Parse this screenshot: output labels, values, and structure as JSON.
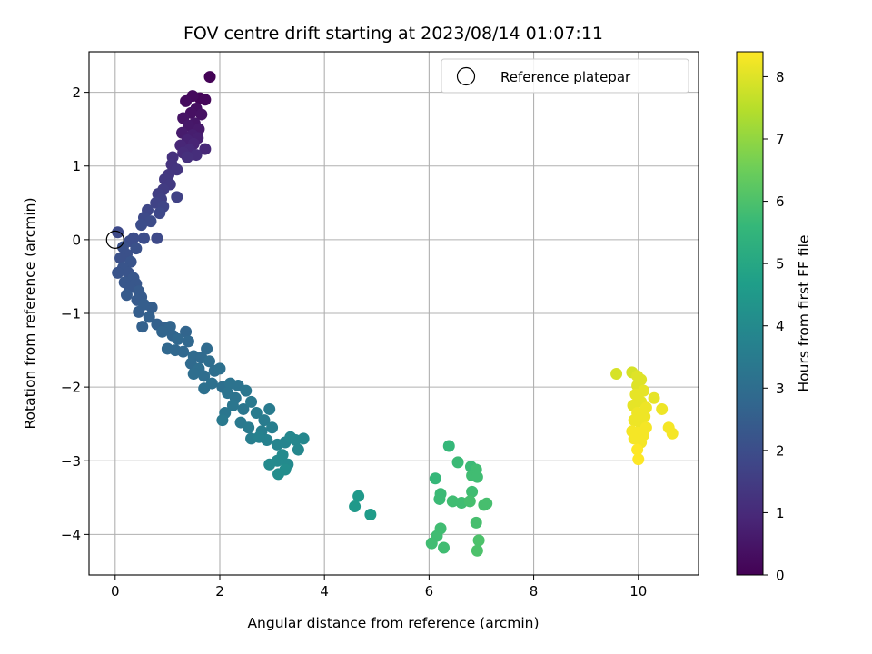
{
  "chart_data": {
    "type": "scatter",
    "title": "FOV centre drift starting at 2023/08/14 01:07:11",
    "xlabel": "Angular distance from reference (arcmin)",
    "ylabel": "Rotation from reference (arcmin)",
    "xlim": [
      -0.5,
      11.15
    ],
    "ylim": [
      -4.55,
      2.55
    ],
    "xticks": [
      0,
      2,
      4,
      6,
      8,
      10
    ],
    "yticks": [
      -4,
      -3,
      -2,
      -1,
      0,
      1,
      2
    ],
    "grid": true,
    "colormap": "viridis",
    "colorbar": {
      "label": "Hours from first FF file",
      "range": [
        0,
        8.4
      ],
      "ticks": [
        0,
        1,
        2,
        3,
        4,
        5,
        6,
        7,
        8
      ]
    },
    "legend": {
      "position": "top-right",
      "entries": [
        {
          "label": "Reference platepar",
          "marker": "open-circle"
        }
      ]
    },
    "reference_point": [
      0,
      0
    ],
    "points": [
      {
        "x": 1.81,
        "y": 2.21,
        "t": 0.05
      },
      {
        "x": 1.62,
        "y": 1.92,
        "t": 0.1
      },
      {
        "x": 1.72,
        "y": 1.9,
        "t": 0.15
      },
      {
        "x": 1.48,
        "y": 1.95,
        "t": 0.2
      },
      {
        "x": 1.35,
        "y": 1.88,
        "t": 0.25
      },
      {
        "x": 1.55,
        "y": 1.78,
        "t": 0.3
      },
      {
        "x": 1.45,
        "y": 1.72,
        "t": 0.35
      },
      {
        "x": 1.65,
        "y": 1.7,
        "t": 0.4
      },
      {
        "x": 1.3,
        "y": 1.65,
        "t": 0.45
      },
      {
        "x": 1.52,
        "y": 1.58,
        "t": 0.5
      },
      {
        "x": 1.4,
        "y": 1.55,
        "t": 0.55
      },
      {
        "x": 1.6,
        "y": 1.5,
        "t": 0.6
      },
      {
        "x": 1.28,
        "y": 1.45,
        "t": 0.65
      },
      {
        "x": 1.48,
        "y": 1.42,
        "t": 0.7
      },
      {
        "x": 1.58,
        "y": 1.38,
        "t": 0.75
      },
      {
        "x": 1.38,
        "y": 1.35,
        "t": 0.8
      },
      {
        "x": 1.5,
        "y": 1.3,
        "t": 0.85
      },
      {
        "x": 1.25,
        "y": 1.28,
        "t": 0.9
      },
      {
        "x": 1.72,
        "y": 1.23,
        "t": 0.95
      },
      {
        "x": 1.42,
        "y": 1.22,
        "t": 1.0
      },
      {
        "x": 1.3,
        "y": 1.18,
        "t": 1.05
      },
      {
        "x": 1.55,
        "y": 1.15,
        "t": 1.1
      },
      {
        "x": 1.38,
        "y": 1.12,
        "t": 1.15
      },
      {
        "x": 1.1,
        "y": 1.12,
        "t": 1.2
      },
      {
        "x": 1.08,
        "y": 1.02,
        "t": 1.25
      },
      {
        "x": 1.18,
        "y": 0.95,
        "t": 1.3
      },
      {
        "x": 1.02,
        "y": 0.88,
        "t": 1.35
      },
      {
        "x": 0.95,
        "y": 0.82,
        "t": 1.4
      },
      {
        "x": 1.05,
        "y": 0.75,
        "t": 1.45
      },
      {
        "x": 0.92,
        "y": 0.68,
        "t": 1.5
      },
      {
        "x": 0.82,
        "y": 0.62,
        "t": 1.55
      },
      {
        "x": 0.88,
        "y": 0.55,
        "t": 1.6
      },
      {
        "x": 1.18,
        "y": 0.58,
        "t": 1.65
      },
      {
        "x": 0.78,
        "y": 0.5,
        "t": 1.7
      },
      {
        "x": 0.92,
        "y": 0.45,
        "t": 1.75
      },
      {
        "x": 0.62,
        "y": 0.4,
        "t": 1.8
      },
      {
        "x": 0.85,
        "y": 0.36,
        "t": 1.85
      },
      {
        "x": 0.55,
        "y": 0.3,
        "t": 1.9
      },
      {
        "x": 0.68,
        "y": 0.25,
        "t": 1.95
      },
      {
        "x": 0.5,
        "y": 0.2,
        "t": 2.0
      },
      {
        "x": 0.05,
        "y": 0.1,
        "t": 1.9
      },
      {
        "x": 0.35,
        "y": 0.02,
        "t": 2.0
      },
      {
        "x": 0.55,
        "y": 0.02,
        "t": 2.0
      },
      {
        "x": 0.8,
        "y": 0.02,
        "t": 1.9
      },
      {
        "x": 0.28,
        "y": -0.02,
        "t": 2.0
      },
      {
        "x": 0.15,
        "y": -0.1,
        "t": 2.1
      },
      {
        "x": 0.4,
        "y": -0.12,
        "t": 2.1
      },
      {
        "x": 0.22,
        "y": -0.2,
        "t": 2.1
      },
      {
        "x": 0.1,
        "y": -0.25,
        "t": 2.1
      },
      {
        "x": 0.3,
        "y": -0.3,
        "t": 2.2
      },
      {
        "x": 0.15,
        "y": -0.38,
        "t": 2.2
      },
      {
        "x": 0.05,
        "y": -0.45,
        "t": 2.2
      },
      {
        "x": 0.25,
        "y": -0.45,
        "t": 2.2
      },
      {
        "x": 0.35,
        "y": -0.52,
        "t": 2.3
      },
      {
        "x": 0.18,
        "y": -0.58,
        "t": 2.3
      },
      {
        "x": 0.4,
        "y": -0.6,
        "t": 2.3
      },
      {
        "x": 0.28,
        "y": -0.65,
        "t": 2.3
      },
      {
        "x": 0.45,
        "y": -0.7,
        "t": 2.4
      },
      {
        "x": 0.22,
        "y": -0.75,
        "t": 2.4
      },
      {
        "x": 0.5,
        "y": -0.78,
        "t": 2.4
      },
      {
        "x": 0.42,
        "y": -0.82,
        "t": 2.4
      },
      {
        "x": 0.55,
        "y": -0.88,
        "t": 2.5
      },
      {
        "x": 0.7,
        "y": -0.92,
        "t": 2.5
      },
      {
        "x": 0.45,
        "y": -0.98,
        "t": 2.5
      },
      {
        "x": 0.65,
        "y": -1.05,
        "t": 2.6
      },
      {
        "x": 0.52,
        "y": -1.18,
        "t": 2.6
      },
      {
        "x": 0.8,
        "y": -1.15,
        "t": 2.6
      },
      {
        "x": 0.95,
        "y": -1.2,
        "t": 2.6
      },
      {
        "x": 1.05,
        "y": -1.18,
        "t": 2.7
      },
      {
        "x": 0.9,
        "y": -1.25,
        "t": 2.7
      },
      {
        "x": 1.1,
        "y": -1.3,
        "t": 2.7
      },
      {
        "x": 1.35,
        "y": -1.25,
        "t": 2.7
      },
      {
        "x": 1.2,
        "y": -1.35,
        "t": 2.8
      },
      {
        "x": 1.4,
        "y": -1.38,
        "t": 2.8
      },
      {
        "x": 1.0,
        "y": -1.48,
        "t": 2.8
      },
      {
        "x": 1.15,
        "y": -1.5,
        "t": 2.8
      },
      {
        "x": 1.3,
        "y": -1.52,
        "t": 2.8
      },
      {
        "x": 1.5,
        "y": -1.58,
        "t": 2.9
      },
      {
        "x": 1.75,
        "y": -1.48,
        "t": 2.9
      },
      {
        "x": 1.65,
        "y": -1.6,
        "t": 2.9
      },
      {
        "x": 1.45,
        "y": -1.68,
        "t": 2.9
      },
      {
        "x": 1.8,
        "y": -1.65,
        "t": 3.0
      },
      {
        "x": 1.6,
        "y": -1.75,
        "t": 3.0
      },
      {
        "x": 1.5,
        "y": -1.82,
        "t": 3.0
      },
      {
        "x": 1.7,
        "y": -1.85,
        "t": 3.0
      },
      {
        "x": 1.9,
        "y": -1.78,
        "t": 3.0
      },
      {
        "x": 2.0,
        "y": -1.75,
        "t": 3.1
      },
      {
        "x": 1.85,
        "y": -1.95,
        "t": 3.1
      },
      {
        "x": 1.7,
        "y": -2.02,
        "t": 3.1
      },
      {
        "x": 2.05,
        "y": -2.0,
        "t": 3.1
      },
      {
        "x": 2.2,
        "y": -1.95,
        "t": 3.2
      },
      {
        "x": 2.35,
        "y": -1.98,
        "t": 3.2
      },
      {
        "x": 2.15,
        "y": -2.08,
        "t": 3.2
      },
      {
        "x": 2.3,
        "y": -2.15,
        "t": 3.2
      },
      {
        "x": 2.5,
        "y": -2.05,
        "t": 3.3
      },
      {
        "x": 2.25,
        "y": -2.25,
        "t": 3.3
      },
      {
        "x": 2.45,
        "y": -2.3,
        "t": 3.3
      },
      {
        "x": 2.1,
        "y": -2.35,
        "t": 3.3
      },
      {
        "x": 2.6,
        "y": -2.2,
        "t": 3.4
      },
      {
        "x": 2.4,
        "y": -2.48,
        "t": 3.4
      },
      {
        "x": 2.05,
        "y": -2.45,
        "t": 3.4
      },
      {
        "x": 2.7,
        "y": -2.35,
        "t": 3.5
      },
      {
        "x": 2.55,
        "y": -2.55,
        "t": 3.5
      },
      {
        "x": 2.85,
        "y": -2.45,
        "t": 3.5
      },
      {
        "x": 2.95,
        "y": -2.3,
        "t": 3.5
      },
      {
        "x": 2.8,
        "y": -2.6,
        "t": 3.6
      },
      {
        "x": 2.6,
        "y": -2.7,
        "t": 3.6
      },
      {
        "x": 3.0,
        "y": -2.55,
        "t": 3.6
      },
      {
        "x": 2.9,
        "y": -2.72,
        "t": 3.7
      },
      {
        "x": 2.75,
        "y": -2.68,
        "t": 3.7
      },
      {
        "x": 3.1,
        "y": -2.78,
        "t": 3.8
      },
      {
        "x": 3.25,
        "y": -2.75,
        "t": 3.8
      },
      {
        "x": 3.35,
        "y": -2.68,
        "t": 3.9
      },
      {
        "x": 3.45,
        "y": -2.72,
        "t": 3.9
      },
      {
        "x": 3.6,
        "y": -2.7,
        "t": 3.9
      },
      {
        "x": 3.5,
        "y": -2.85,
        "t": 3.9
      },
      {
        "x": 3.2,
        "y": -2.92,
        "t": 4.0
      },
      {
        "x": 3.1,
        "y": -3.0,
        "t": 4.0
      },
      {
        "x": 3.3,
        "y": -3.05,
        "t": 4.0
      },
      {
        "x": 2.95,
        "y": -3.05,
        "t": 4.0
      },
      {
        "x": 3.25,
        "y": -3.12,
        "t": 4.1
      },
      {
        "x": 3.12,
        "y": -3.18,
        "t": 4.1
      },
      {
        "x": 4.65,
        "y": -3.48,
        "t": 4.5
      },
      {
        "x": 4.58,
        "y": -3.62,
        "t": 4.5
      },
      {
        "x": 4.88,
        "y": -3.73,
        "t": 4.6
      },
      {
        "x": 6.38,
        "y": -2.8,
        "t": 5.6
      },
      {
        "x": 6.55,
        "y": -3.02,
        "t": 5.7
      },
      {
        "x": 6.8,
        "y": -3.08,
        "t": 5.7
      },
      {
        "x": 6.9,
        "y": -3.12,
        "t": 5.8
      },
      {
        "x": 6.82,
        "y": -3.2,
        "t": 5.8
      },
      {
        "x": 6.92,
        "y": -3.22,
        "t": 5.8
      },
      {
        "x": 6.12,
        "y": -3.24,
        "t": 5.6
      },
      {
        "x": 6.22,
        "y": -3.45,
        "t": 5.7
      },
      {
        "x": 6.2,
        "y": -3.52,
        "t": 5.7
      },
      {
        "x": 6.82,
        "y": -3.42,
        "t": 5.8
      },
      {
        "x": 6.45,
        "y": -3.55,
        "t": 5.8
      },
      {
        "x": 6.62,
        "y": -3.57,
        "t": 5.8
      },
      {
        "x": 6.78,
        "y": -3.55,
        "t": 5.9
      },
      {
        "x": 7.05,
        "y": -3.6,
        "t": 5.9
      },
      {
        "x": 7.1,
        "y": -3.58,
        "t": 5.9
      },
      {
        "x": 6.9,
        "y": -3.84,
        "t": 5.9
      },
      {
        "x": 6.22,
        "y": -3.92,
        "t": 5.8
      },
      {
        "x": 6.15,
        "y": -4.02,
        "t": 5.8
      },
      {
        "x": 6.05,
        "y": -4.12,
        "t": 5.8
      },
      {
        "x": 6.28,
        "y": -4.18,
        "t": 5.8
      },
      {
        "x": 6.95,
        "y": -4.08,
        "t": 6.0
      },
      {
        "x": 6.92,
        "y": -4.22,
        "t": 6.0
      },
      {
        "x": 9.58,
        "y": -1.82,
        "t": 7.9
      },
      {
        "x": 9.88,
        "y": -1.8,
        "t": 7.9
      },
      {
        "x": 9.98,
        "y": -1.85,
        "t": 8.0
      },
      {
        "x": 10.05,
        "y": -1.9,
        "t": 8.0
      },
      {
        "x": 9.98,
        "y": -1.98,
        "t": 8.0
      },
      {
        "x": 10.1,
        "y": -2.05,
        "t": 8.1
      },
      {
        "x": 9.95,
        "y": -2.1,
        "t": 8.1
      },
      {
        "x": 10.3,
        "y": -2.15,
        "t": 8.1
      },
      {
        "x": 10.05,
        "y": -2.2,
        "t": 8.1
      },
      {
        "x": 9.9,
        "y": -2.25,
        "t": 8.1
      },
      {
        "x": 10.15,
        "y": -2.28,
        "t": 8.2
      },
      {
        "x": 10.45,
        "y": -2.3,
        "t": 8.2
      },
      {
        "x": 9.98,
        "y": -2.35,
        "t": 8.2
      },
      {
        "x": 10.12,
        "y": -2.4,
        "t": 8.2
      },
      {
        "x": 9.92,
        "y": -2.45,
        "t": 8.2
      },
      {
        "x": 10.05,
        "y": -2.5,
        "t": 8.2
      },
      {
        "x": 10.15,
        "y": -2.55,
        "t": 8.3
      },
      {
        "x": 9.88,
        "y": -2.6,
        "t": 8.3
      },
      {
        "x": 10.0,
        "y": -2.62,
        "t": 8.3
      },
      {
        "x": 10.1,
        "y": -2.65,
        "t": 8.3
      },
      {
        "x": 9.92,
        "y": -2.7,
        "t": 8.3
      },
      {
        "x": 10.58,
        "y": -2.55,
        "t": 8.3
      },
      {
        "x": 10.65,
        "y": -2.63,
        "t": 8.3
      },
      {
        "x": 10.05,
        "y": -2.75,
        "t": 8.3
      },
      {
        "x": 9.98,
        "y": -2.85,
        "t": 8.4
      },
      {
        "x": 10.0,
        "y": -2.98,
        "t": 8.4
      }
    ]
  }
}
